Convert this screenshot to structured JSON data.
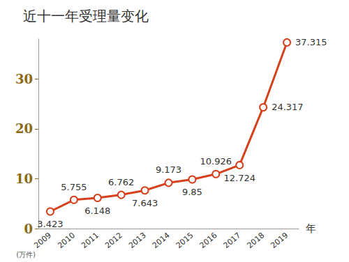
{
  "chart_data": {
    "type": "line",
    "title": "近十一年受理量变化",
    "xlabel": "年",
    "ylabel": "(万件)",
    "categories": [
      "2009",
      "2010",
      "2011",
      "2012",
      "2013",
      "2014",
      "2015",
      "2016",
      "2017",
      "2018",
      "2019"
    ],
    "values": [
      3.423,
      5.755,
      6.148,
      6.762,
      7.643,
      9.173,
      9.85,
      10.926,
      12.724,
      24.317,
      37.315
    ],
    "color": "#d6401c",
    "marker": "circle",
    "ylim": [
      0,
      38
    ],
    "yticks": [
      0,
      10,
      20,
      30
    ],
    "grid": false,
    "data_labels": true
  }
}
